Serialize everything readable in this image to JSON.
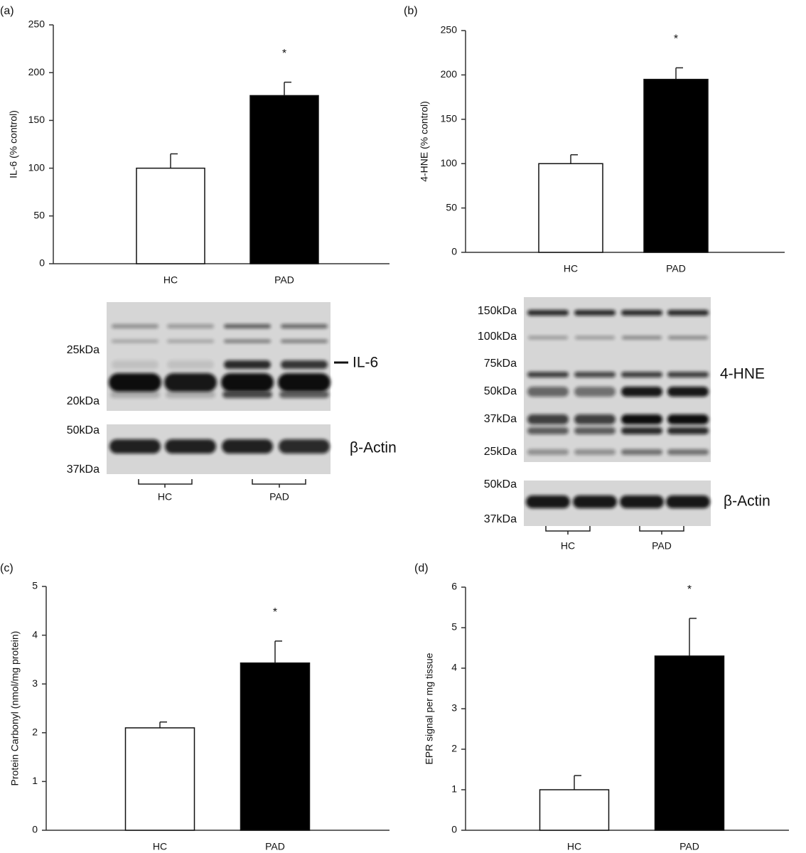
{
  "chart_data": [
    {
      "type": "bar",
      "panel": "(a)",
      "y_label": "IL-6 (% control)",
      "categories": [
        "HC",
        "PAD"
      ],
      "values": [
        100,
        176
      ],
      "errors": [
        15,
        14
      ],
      "significance_labels": [
        null,
        "*"
      ],
      "colors": [
        "#ffffff",
        "#000000"
      ],
      "ylim": [
        0,
        250
      ],
      "yticks": [
        0,
        50,
        100,
        150,
        200,
        250
      ]
    },
    {
      "type": "bar",
      "panel": "(b)",
      "y_label": "4-HNE (% control)",
      "categories": [
        "HC",
        "PAD"
      ],
      "values": [
        100,
        195
      ],
      "errors": [
        10,
        13
      ],
      "significance_labels": [
        null,
        "*"
      ],
      "colors": [
        "#ffffff",
        "#000000"
      ],
      "ylim": [
        0,
        250
      ],
      "yticks": [
        0,
        50,
        100,
        150,
        200,
        250
      ]
    },
    {
      "type": "bar",
      "panel": "(c)",
      "y_label": "Protein Carbonyl (nmol/mg protein)",
      "categories": [
        "HC",
        "PAD"
      ],
      "values": [
        2.1,
        3.43
      ],
      "errors": [
        0.12,
        0.45
      ],
      "significance_labels": [
        null,
        "*"
      ],
      "colors": [
        "#ffffff",
        "#000000"
      ],
      "ylim": [
        0,
        5
      ],
      "yticks": [
        0,
        1,
        2,
        3,
        4,
        5
      ]
    },
    {
      "type": "bar",
      "panel": "(d)",
      "y_label": "EPR signal per mg tissue",
      "categories": [
        "HC",
        "PAD"
      ],
      "values": [
        1.0,
        4.3
      ],
      "errors": [
        0.35,
        0.93
      ],
      "significance_labels": [
        null,
        "*"
      ],
      "colors": [
        "#ffffff",
        "#000000"
      ],
      "ylim": [
        0,
        6
      ],
      "yticks": [
        0,
        1,
        2,
        3,
        4,
        5,
        6
      ]
    }
  ],
  "blots": [
    {
      "markers": [
        "25kDa",
        "20kDa"
      ],
      "target": "IL-6",
      "control_markers": [
        "50kDa",
        "37kDa"
      ],
      "control": "β-Actin",
      "groups": [
        "HC",
        "PAD"
      ]
    },
    {
      "markers": [
        "150kDa",
        "100kDa",
        "75kDa",
        "50kDa",
        "37kDa",
        "25kDa"
      ],
      "target": "4-HNE",
      "control_markers": [
        "50kDa",
        "37kDa"
      ],
      "control": "β-Actin",
      "groups": [
        "HC",
        "PAD"
      ]
    }
  ]
}
